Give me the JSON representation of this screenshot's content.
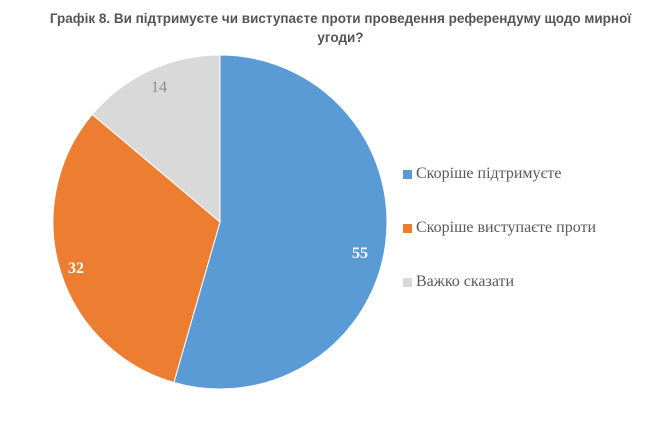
{
  "title": {
    "line1": "Графік 8. Ви підтримуєте чи виступаєте проти проведення референдуму щодо мирної",
    "line2": "угоди?"
  },
  "chart_data": {
    "type": "pie",
    "title": "Графік 8. Ви підтримуєте чи виступаєте проти проведення референдуму щодо мирної угоди?",
    "categories": [
      "Скоріше підтримуєте",
      "Скоріше виступаєте проти",
      "Важко сказати"
    ],
    "values": [
      55,
      32,
      14
    ],
    "colors": [
      "#5B9BD5",
      "#ED7D31",
      "#D9D9D9"
    ],
    "data_labels": [
      "55",
      "32",
      "14"
    ],
    "start_angle": "12 o'clock, clockwise",
    "legend_position": "right"
  },
  "legend": {
    "items": [
      {
        "label": "Скоріше підтримуєте",
        "color": "#5B9BD5"
      },
      {
        "label": "Скоріше виступаєте проти",
        "color": "#ED7D31"
      },
      {
        "label": "Важко сказати",
        "color": "#D9D9D9"
      }
    ]
  },
  "labels": {
    "s0": "55",
    "s1": "32",
    "s2": "14"
  }
}
